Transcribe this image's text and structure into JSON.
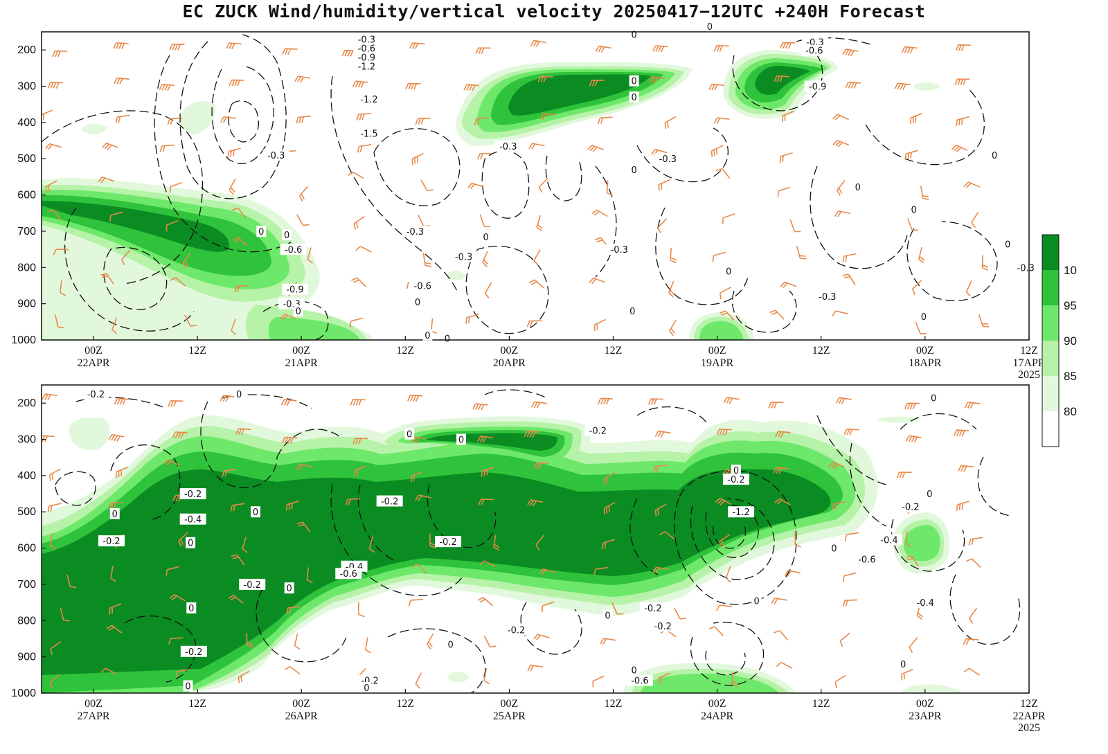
{
  "title": "EC ZUCK Wind/humidity/vertical velocity 20250417−12UTC +240H Forecast",
  "colors": {
    "rh_80": "#e2f8dc",
    "rh_85": "#b6f2a8",
    "rh_90": "#6de86a",
    "rh_95": "#2fc23b",
    "rh_100": "#0a8c22",
    "wind_barb": "#e8894a",
    "contour": "#111111"
  },
  "colorbar": {
    "levels": [
      "80",
      "85",
      "90",
      "95",
      "10"
    ]
  },
  "chart_data": [
    {
      "type": "heatmap",
      "description_fields": [
        "relative humidity (shaded, %)",
        "vertical velocity (dashed contours)",
        "wind barbs"
      ],
      "y_ticks": [
        "200",
        "300",
        "400",
        "500",
        "600",
        "700",
        "800",
        "900",
        "1000"
      ],
      "ylim": [
        1000,
        150
      ],
      "x_ticks": [
        {
          "top": "00Z",
          "bottom": "22APR"
        },
        {
          "top": "12Z",
          "bottom": ""
        },
        {
          "top": "00Z",
          "bottom": "21APR"
        },
        {
          "top": "12Z",
          "bottom": ""
        },
        {
          "top": "00Z",
          "bottom": "20APR"
        },
        {
          "top": "12Z",
          "bottom": ""
        },
        {
          "top": "00Z",
          "bottom": "19APR"
        },
        {
          "top": "12Z",
          "bottom": ""
        },
        {
          "top": "00Z",
          "bottom": "18APR"
        },
        {
          "top": "12Z",
          "bottom": "17APR",
          "extra": "2025"
        }
      ],
      "contour_labels": [
        {
          "text": "-0.3",
          "time_h": 80.5,
          "p": 170
        },
        {
          "text": "-0.6",
          "time_h": 80.5,
          "p": 195
        },
        {
          "text": "-0.9",
          "time_h": 80.5,
          "p": 220
        },
        {
          "text": "-1.2",
          "time_h": 80.5,
          "p": 245
        },
        {
          "text": "-1.2",
          "time_h": 80.2,
          "p": 335
        },
        {
          "text": "-1.5",
          "time_h": 80.2,
          "p": 430
        },
        {
          "text": "-0.3",
          "time_h": 91.5,
          "p": 490
        },
        {
          "text": "0",
          "time_h": 93.3,
          "p": 700
        },
        {
          "text": "0",
          "time_h": 90.2,
          "p": 710
        },
        {
          "text": "-0.6",
          "time_h": 89.4,
          "p": 750
        },
        {
          "text": "-0.9",
          "time_h": 89.2,
          "p": 860
        },
        {
          "text": "-0.3",
          "time_h": 89.6,
          "p": 900
        },
        {
          "text": "0",
          "time_h": 88.8,
          "p": 920
        },
        {
          "text": "-0.3",
          "time_h": 74.6,
          "p": 700
        },
        {
          "text": "-0.6",
          "time_h": 73.7,
          "p": 850
        },
        {
          "text": "0",
          "time_h": 74.3,
          "p": 895
        },
        {
          "text": "0",
          "time_h": 70.7,
          "p": 995
        },
        {
          "text": "-0.3",
          "time_h": 63.3,
          "p": 465
        },
        {
          "text": "0",
          "time_h": 66.0,
          "p": 715
        },
        {
          "text": "-0.3",
          "time_h": 68.7,
          "p": 770
        },
        {
          "text": "0",
          "time_h": 48.0,
          "p": 157
        },
        {
          "text": "0",
          "time_h": 48.0,
          "p": 285
        },
        {
          "text": "0",
          "time_h": 48.0,
          "p": 330
        },
        {
          "text": "0",
          "time_h": 48.0,
          "p": 530
        },
        {
          "text": "-0.3",
          "time_h": 49.8,
          "p": 750
        },
        {
          "text": "0",
          "time_h": 48.2,
          "p": 920
        },
        {
          "text": "-0.3",
          "time_h": 43.9,
          "p": 500
        },
        {
          "text": "0",
          "time_h": 38.8,
          "p": 135
        },
        {
          "text": "0",
          "time_h": 36.5,
          "p": 810
        },
        {
          "text": "-0.3",
          "time_h": 26.0,
          "p": 178
        },
        {
          "text": "-0.6",
          "time_h": 26.1,
          "p": 201
        },
        {
          "text": "-0.9",
          "time_h": 25.7,
          "p": 300
        },
        {
          "text": "0",
          "time_h": 20.4,
          "p": 40
        },
        {
          "text": "0",
          "time_h": 14.0,
          "p": 640
        },
        {
          "text": "0",
          "time_h": 20.8,
          "p": 578
        },
        {
          "text": "-0.3",
          "time_h": 24.5,
          "p": 880
        },
        {
          "text": "0",
          "time_h": 4.2,
          "p": 490
        },
        {
          "text": "-0.3",
          "time_h": 0.4,
          "p": 800
        },
        {
          "text": "0",
          "time_h": 2.6,
          "p": 735
        },
        {
          "text": "0",
          "time_h": -2.2,
          "p": 920
        },
        {
          "text": "0",
          "time_h": 12.8,
          "p": 935
        }
      ]
    },
    {
      "type": "heatmap",
      "description_fields": [
        "relative humidity (shaded, %)",
        "vertical velocity (dashed contours)",
        "wind barbs"
      ],
      "y_ticks": [
        "200",
        "300",
        "400",
        "500",
        "600",
        "700",
        "800",
        "900",
        "1000"
      ],
      "ylim": [
        1000,
        150
      ],
      "x_ticks": [
        {
          "top": "00Z",
          "bottom": "27APR"
        },
        {
          "top": "12Z",
          "bottom": ""
        },
        {
          "top": "00Z",
          "bottom": "26APR"
        },
        {
          "top": "12Z",
          "bottom": ""
        },
        {
          "top": "00Z",
          "bottom": "25APR"
        },
        {
          "top": "12Z",
          "bottom": ""
        },
        {
          "top": "00Z",
          "bottom": "24APR"
        },
        {
          "top": "12Z",
          "bottom": ""
        },
        {
          "top": "00Z",
          "bottom": "23APR"
        },
        {
          "top": "12Z",
          "bottom": "22APR",
          "extra": "2025"
        }
      ],
      "contour_labels": [
        {
          "text": "-0.2",
          "time_h": 113.4,
          "p": 175
        },
        {
          "text": "0",
          "time_h": 96.0,
          "p": 175
        },
        {
          "text": "-0.2",
          "time_h": 101.6,
          "p": 450
        },
        {
          "text": "-0.4",
          "time_h": 101.6,
          "p": 520
        },
        {
          "text": "0",
          "time_h": 101.9,
          "p": 585
        },
        {
          "text": "-0.2",
          "time_h": 111.5,
          "p": 580
        },
        {
          "text": "0",
          "time_h": 111.1,
          "p": 505
        },
        {
          "text": "-0.2",
          "time_h": 94.4,
          "p": 700
        },
        {
          "text": "0",
          "time_h": 89.9,
          "p": 710
        },
        {
          "text": "0",
          "time_h": 101.8,
          "p": 765
        },
        {
          "text": "-0.2",
          "time_h": 101.5,
          "p": 885
        },
        {
          "text": "0",
          "time_h": 102.2,
          "p": 980
        },
        {
          "text": "0",
          "time_h": 94.0,
          "p": 500
        },
        {
          "text": "-0.4",
          "time_h": 82.0,
          "p": 650
        },
        {
          "text": "-0.6",
          "time_h": 82.7,
          "p": 670
        },
        {
          "text": "-0.2",
          "time_h": 77.7,
          "p": 470
        },
        {
          "text": "-0.2",
          "time_h": 80.1,
          "p": 965
        },
        {
          "text": "0",
          "time_h": 80.5,
          "p": 985
        },
        {
          "text": "0",
          "time_h": 75.3,
          "p": 285
        },
        {
          "text": "0",
          "time_h": 69.0,
          "p": 300
        },
        {
          "text": "-0.2",
          "time_h": 70.6,
          "p": 582
        },
        {
          "text": "0",
          "time_h": 73.1,
          "p": 12
        },
        {
          "text": "-0.2",
          "time_h": 52.4,
          "p": 275
        },
        {
          "text": "0",
          "time_h": 70.3,
          "p": 865
        },
        {
          "text": "-0.2",
          "time_h": 62.3,
          "p": 825
        },
        {
          "text": "0",
          "time_h": 51.2,
          "p": 785
        },
        {
          "text": "0",
          "time_h": 48.0,
          "p": 936
        },
        {
          "text": "0",
          "time_h": 35.6,
          "p": 385
        },
        {
          "text": "-0.2",
          "time_h": 35.6,
          "p": 410
        },
        {
          "text": "-1.2",
          "time_h": 35.0,
          "p": 500
        },
        {
          "text": "-0.2",
          "time_h": 45.7,
          "p": 765
        },
        {
          "text": "-0.2",
          "time_h": 44.5,
          "p": 815
        },
        {
          "text": "-0.6",
          "time_h": 47.3,
          "p": 965
        },
        {
          "text": "0",
          "time_h": 33.1,
          "p": 745
        },
        {
          "text": "0",
          "time_h": 23.7,
          "p": 600
        },
        {
          "text": "-0.4",
          "time_h": 17.0,
          "p": 577
        },
        {
          "text": "-0.6",
          "time_h": 19.7,
          "p": 630
        },
        {
          "text": "-0.2",
          "time_h": 14.4,
          "p": 485
        },
        {
          "text": "0",
          "time_h": 12.1,
          "p": 450
        },
        {
          "text": "-0.4",
          "time_h": 12.6,
          "p": 750
        },
        {
          "text": "0",
          "time_h": 15.3,
          "p": 920
        },
        {
          "text": "0",
          "time_h": 11.6,
          "p": 185
        }
      ]
    }
  ]
}
